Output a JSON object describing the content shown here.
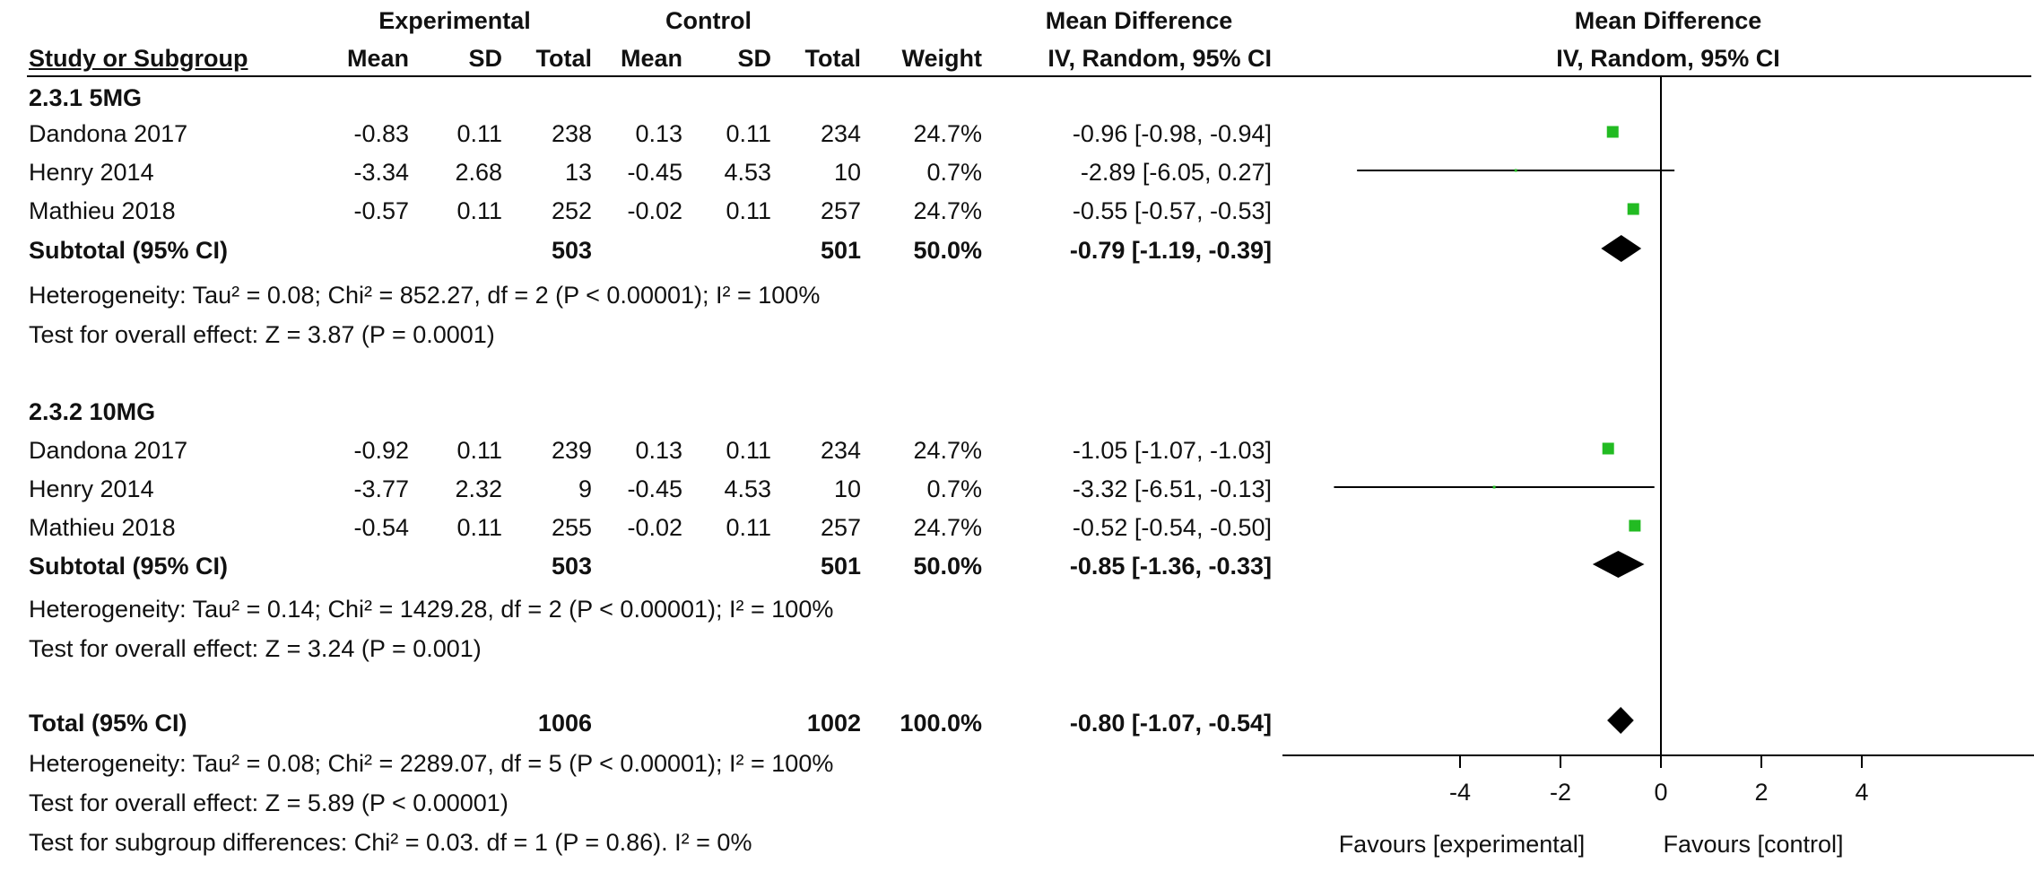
{
  "header": {
    "group_experimental": "Experimental",
    "group_control": "Control",
    "group_mean_difference": "Mean Difference",
    "col_study": "Study or Subgroup",
    "col_exp_mean": "Mean",
    "col_exp_sd": "SD",
    "col_exp_total": "Total",
    "col_ctl_mean": "Mean",
    "col_ctl_sd": "SD",
    "col_ctl_total": "Total",
    "col_weight": "Weight",
    "col_md": "IV, Random, 95% CI",
    "plot_title": "Mean Difference",
    "plot_subtitle": "IV, Random, 95% CI"
  },
  "subgroups": [
    {
      "label": "2.3.1 5MG",
      "studies": [
        {
          "name": "Dandona 2017",
          "exp_mean": "-0.83",
          "exp_sd": "0.11",
          "exp_total": "238",
          "ctl_mean": "0.13",
          "ctl_sd": "0.11",
          "ctl_total": "234",
          "weight": "24.7%",
          "md": "-0.96 [-0.98, -0.94]"
        },
        {
          "name": "Henry 2014",
          "exp_mean": "-3.34",
          "exp_sd": "2.68",
          "exp_total": "13",
          "ctl_mean": "-0.45",
          "ctl_sd": "4.53",
          "ctl_total": "10",
          "weight": "0.7%",
          "md": "-2.89 [-6.05, 0.27]"
        },
        {
          "name": "Mathieu 2018",
          "exp_mean": "-0.57",
          "exp_sd": "0.11",
          "exp_total": "252",
          "ctl_mean": "-0.02",
          "ctl_sd": "0.11",
          "ctl_total": "257",
          "weight": "24.7%",
          "md": "-0.55 [-0.57, -0.53]"
        }
      ],
      "subtotal": {
        "label": "Subtotal (95% CI)",
        "exp_total": "503",
        "ctl_total": "501",
        "weight": "50.0%",
        "md": "-0.79 [-1.19, -0.39]"
      },
      "heterogeneity": "Heterogeneity: Tau² = 0.08; Chi² = 852.27, df = 2 (P < 0.00001); I² = 100%",
      "overall_effect": "Test for overall effect: Z = 3.87 (P = 0.0001)"
    },
    {
      "label": "2.3.2 10MG",
      "studies": [
        {
          "name": "Dandona 2017",
          "exp_mean": "-0.92",
          "exp_sd": "0.11",
          "exp_total": "239",
          "ctl_mean": "0.13",
          "ctl_sd": "0.11",
          "ctl_total": "234",
          "weight": "24.7%",
          "md": "-1.05 [-1.07, -1.03]"
        },
        {
          "name": "Henry 2014",
          "exp_mean": "-3.77",
          "exp_sd": "2.32",
          "exp_total": "9",
          "ctl_mean": "-0.45",
          "ctl_sd": "4.53",
          "ctl_total": "10",
          "weight": "0.7%",
          "md": "-3.32 [-6.51, -0.13]"
        },
        {
          "name": "Mathieu 2018",
          "exp_mean": "-0.54",
          "exp_sd": "0.11",
          "exp_total": "255",
          "ctl_mean": "-0.02",
          "ctl_sd": "0.11",
          "ctl_total": "257",
          "weight": "24.7%",
          "md": "-0.52 [-0.54, -0.50]"
        }
      ],
      "subtotal": {
        "label": "Subtotal (95% CI)",
        "exp_total": "503",
        "ctl_total": "501",
        "weight": "50.0%",
        "md": "-0.85 [-1.36, -0.33]"
      },
      "heterogeneity": "Heterogeneity: Tau² = 0.14; Chi² = 1429.28, df = 2 (P < 0.00001); I² = 100%",
      "overall_effect": "Test for overall effect: Z = 3.24 (P = 0.001)"
    }
  ],
  "total": {
    "label": "Total (95% CI)",
    "exp_total": "1006",
    "ctl_total": "1002",
    "weight": "100.0%",
    "md": "-0.80 [-1.07, -0.54]",
    "heterogeneity": "Heterogeneity: Tau² = 0.08; Chi² = 2289.07, df = 5 (P < 0.00001); I² = 100%",
    "overall_effect": "Test for overall effect: Z = 5.89 (P < 0.00001)",
    "subgroup_differences": "Test for subgroup differences: Chi² = 0.03. df = 1 (P = 0.86). I² = 0%"
  },
  "axis": {
    "favours_left": "Favours [experimental]",
    "favours_right": "Favours [control]"
  },
  "colors": {
    "study_marker": "#22bb22",
    "summary_diamond": "#000000",
    "lines": "#000000"
  },
  "chart_data": {
    "type": "forest",
    "xlim": [
      -8,
      8
    ],
    "xticks": [
      -4,
      -2,
      0,
      2,
      4
    ],
    "xtick_labels": [
      "-4",
      "-2",
      "0",
      "2",
      "4"
    ],
    "null_line": 0,
    "grid": false,
    "rows": [
      {
        "kind": "study",
        "label": "Dandona 2017",
        "subgroup": "2.3.1 5MG",
        "md": -0.96,
        "lo": -0.98,
        "hi": -0.94,
        "weight": 24.7
      },
      {
        "kind": "study",
        "label": "Henry 2014",
        "subgroup": "2.3.1 5MG",
        "md": -2.89,
        "lo": -6.05,
        "hi": 0.27,
        "weight": 0.7
      },
      {
        "kind": "study",
        "label": "Mathieu 2018",
        "subgroup": "2.3.1 5MG",
        "md": -0.55,
        "lo": -0.57,
        "hi": -0.53,
        "weight": 24.7
      },
      {
        "kind": "subtotal",
        "label": "Subtotal (95% CI)",
        "subgroup": "2.3.1 5MG",
        "md": -0.79,
        "lo": -1.19,
        "hi": -0.39
      },
      {
        "kind": "study",
        "label": "Dandona 2017",
        "subgroup": "2.3.2 10MG",
        "md": -1.05,
        "lo": -1.07,
        "hi": -1.03,
        "weight": 24.7
      },
      {
        "kind": "study",
        "label": "Henry 2014",
        "subgroup": "2.3.2 10MG",
        "md": -3.32,
        "lo": -6.51,
        "hi": -0.13,
        "weight": 0.7
      },
      {
        "kind": "study",
        "label": "Mathieu 2018",
        "subgroup": "2.3.2 10MG",
        "md": -0.52,
        "lo": -0.54,
        "hi": -0.5,
        "weight": 24.7
      },
      {
        "kind": "subtotal",
        "label": "Subtotal (95% CI)",
        "subgroup": "2.3.2 10MG",
        "md": -0.85,
        "lo": -1.36,
        "hi": -0.33
      },
      {
        "kind": "total",
        "label": "Total (95% CI)",
        "md": -0.8,
        "lo": -1.07,
        "hi": -0.54
      }
    ]
  }
}
